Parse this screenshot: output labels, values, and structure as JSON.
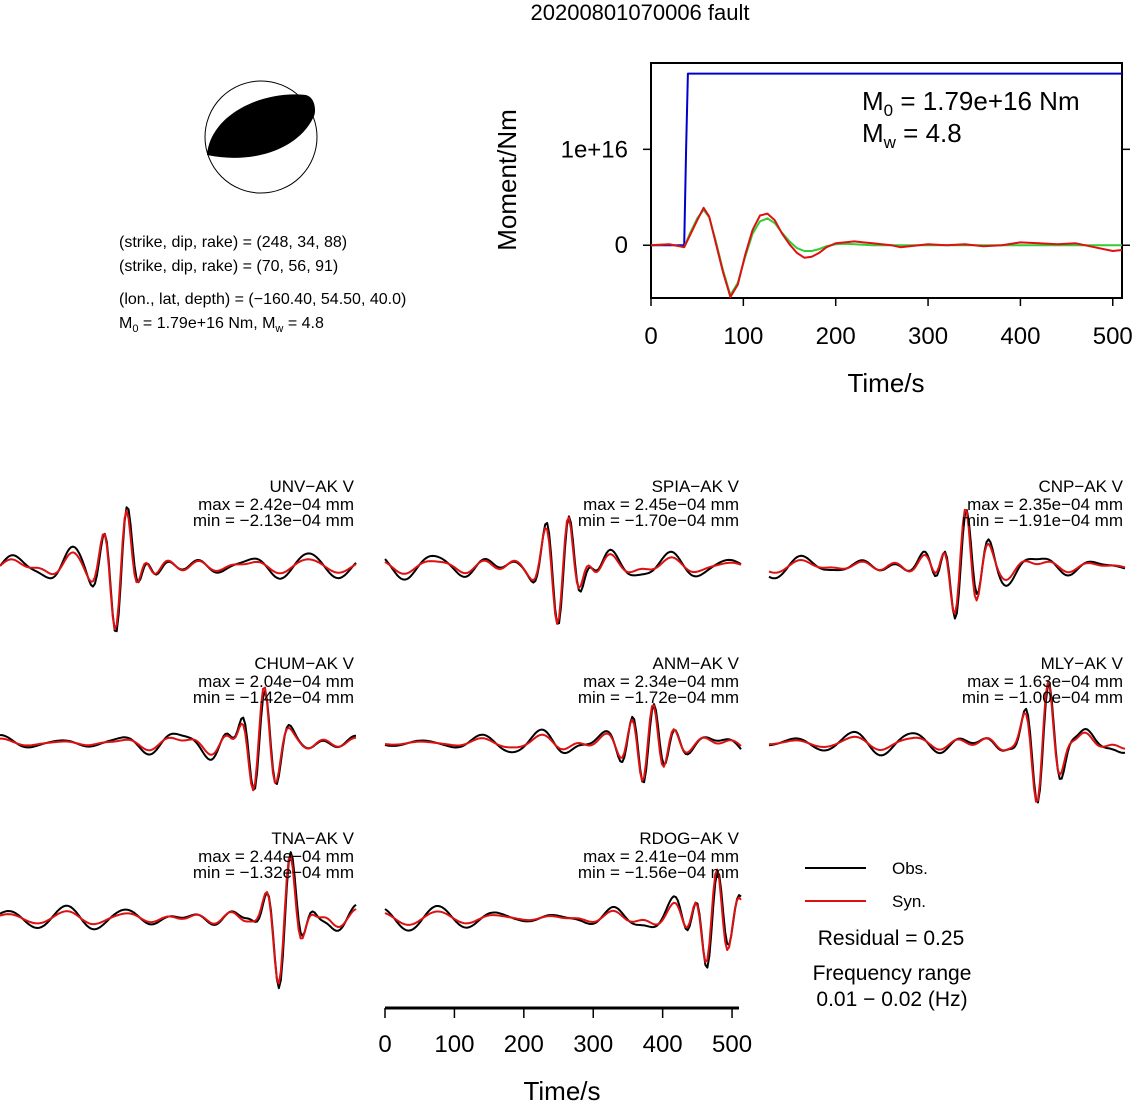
{
  "title": "20200801070006 fault",
  "colors": {
    "obs": "#000000",
    "syn": "#dd1111",
    "moment": "#0000cc",
    "mrf": "#33cc33"
  },
  "beachball": {
    "lines": [
      "(strike, dip, rake) = (248, 34, 88)",
      "(strike, dip, rake) = (70, 56, 91)",
      "(lon., lat, depth) = (−160.40, 54.50, 40.0)"
    ],
    "m0_line": {
      "prefix": "M",
      "sub0": "0",
      "mid": " = 1.79e+16 Nm, M",
      "subw": "w",
      "suffix": " = 4.8"
    }
  },
  "moment_plot": {
    "ylabel": "Moment/Nm",
    "xlabel": "Time/s",
    "xticks": [
      "0",
      "100",
      "200",
      "300",
      "400",
      "500"
    ],
    "yticks": [
      "0",
      "1e+16"
    ],
    "annotation": {
      "m0_prefix": "M",
      "m0_sub": "0",
      "m0_value": " = 1.79e+16 Nm",
      "mw_prefix": "M",
      "mw_sub": "w",
      "mw_value": " = 4.8"
    }
  },
  "chart_data": [
    {
      "type": "line",
      "id": "moment-function",
      "xlabel": "Time/s",
      "ylabel": "Moment/Nm",
      "xlim": [
        0,
        510
      ],
      "ylim": [
        -5500000000000000.0,
        1.9e+16
      ],
      "series": [
        {
          "x": [
            0,
            30,
            36,
            38,
            40,
            42,
            510
          ],
          "y": [
            0,
            0,
            0,
            1e+16,
            1.79e+16,
            1.79e+16,
            1.79e+16
          ]
        },
        {
          "x": [
            0,
            20,
            36,
            42,
            50,
            57,
            63,
            70,
            78,
            86,
            94,
            102,
            110,
            118,
            126,
            134,
            142,
            150,
            158,
            166,
            174,
            182,
            190,
            200,
            210,
            220,
            230,
            240,
            250,
            260,
            270,
            280,
            290,
            300,
            320,
            340,
            360,
            380,
            400,
            420,
            440,
            460,
            480,
            500,
            510
          ],
          "y": [
            0,
            100000000000000.0,
            -200000000000000.0,
            1200000000000000.0,
            2800000000000000.0,
            3700000000000000.0,
            2900000000000000.0,
            500000000000000.0,
            -2600000000000000.0,
            -5200000000000000.0,
            -3900000000000000.0,
            -1200000000000000.0,
            1200000000000000.0,
            2500000000000000.0,
            2800000000000000.0,
            2300000000000000.0,
            1300000000000000.0,
            400000000000000.0,
            -300000000000000.0,
            -600000000000000.0,
            -600000000000000.0,
            -400000000000000.0,
            -100000000000000.0,
            100000000000000.0,
            150000000000000.0,
            100000000000000.0,
            50000000000000.0,
            0,
            0,
            0,
            0,
            0,
            0,
            0,
            0,
            0,
            0,
            0,
            0,
            0,
            0,
            0,
            0,
            0,
            0
          ]
        },
        {
          "x": [
            0,
            20,
            36,
            42,
            50,
            57,
            63,
            70,
            78,
            86,
            94,
            102,
            110,
            118,
            126,
            134,
            142,
            150,
            158,
            166,
            174,
            182,
            190,
            200,
            210,
            220,
            230,
            240,
            250,
            260,
            270,
            280,
            290,
            300,
            320,
            340,
            360,
            380,
            400,
            420,
            440,
            460,
            480,
            500,
            510
          ],
          "y": [
            0,
            100000000000000.0,
            -200000000000000.0,
            1000000000000000.0,
            2600000000000000.0,
            3900000000000000.0,
            3000000000000000.0,
            300000000000000.0,
            -2800000000000000.0,
            -5400000000000000.0,
            -4100000000000000.0,
            -1000000000000000.0,
            1600000000000000.0,
            3100000000000000.0,
            3300000000000000.0,
            2600000000000000.0,
            1200000000000000.0,
            100000000000000.0,
            -800000000000000.0,
            -1300000000000000.0,
            -1200000000000000.0,
            -800000000000000.0,
            -200000000000000.0,
            200000000000000.0,
            300000000000000.0,
            400000000000000.0,
            300000000000000.0,
            200000000000000.0,
            100000000000000.0,
            0,
            -200000000000000.0,
            -100000000000000.0,
            0,
            100000000000000.0,
            0,
            100000000000000.0,
            -100000000000000.0,
            0,
            300000000000000.0,
            200000000000000.0,
            100000000000000.0,
            200000000000000.0,
            -200000000000000.0,
            -600000000000000.0,
            -500000000000000.0
          ]
        }
      ]
    }
  ],
  "stations": [
    {
      "name": "UNV−AK V",
      "max": "max = 2.42e−04 mm",
      "min": "min = −2.13e−04 mm"
    },
    {
      "name": "SPIA−AK V",
      "max": "max = 2.45e−04 mm",
      "min": "min = −1.70e−04 mm"
    },
    {
      "name": "CNP−AK V",
      "max": "max = 2.35e−04 mm",
      "min": "min = −1.91e−04 mm"
    },
    {
      "name": "CHUM−AK V",
      "max": "max = 2.04e−04 mm",
      "min": "min = −1.42e−04 mm"
    },
    {
      "name": "ANM−AK V",
      "max": "max = 2.34e−04 mm",
      "min": "min = −1.72e−04 mm"
    },
    {
      "name": "MLY−AK V",
      "max": "max = 1.63e−04 mm",
      "min": "min = −1.00e−04 mm"
    },
    {
      "name": "TNA−AK V",
      "max": "max = 2.44e−04 mm",
      "min": "min = −1.32e−04 mm"
    },
    {
      "name": "RDOG−AK V",
      "max": "max = 2.41e−04 mm",
      "min": "min = −1.56e−04 mm"
    }
  ],
  "waveform_axis": {
    "xlabel": "Time/s",
    "xticks": [
      "0",
      "100",
      "200",
      "300",
      "400",
      "500"
    ]
  },
  "legend": {
    "obs": "Obs.",
    "syn": "Syn.",
    "residual": "Residual = 0.25",
    "freq_title": "Frequency range",
    "freq_value": "0.01 − 0.02 (Hz)"
  }
}
